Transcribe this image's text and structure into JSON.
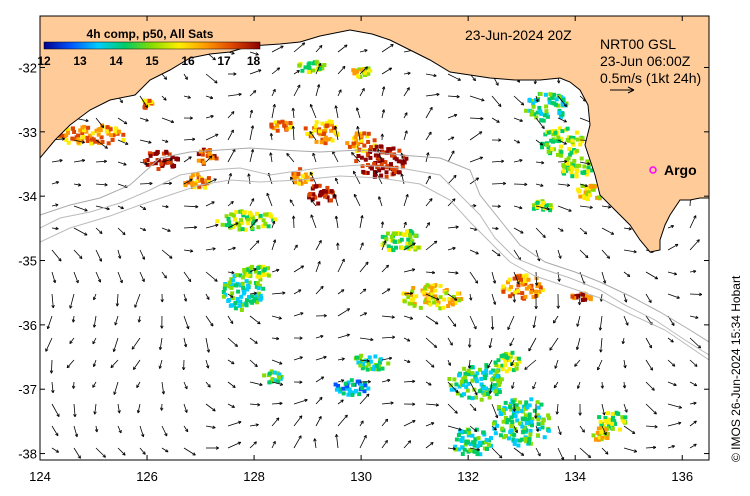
{
  "colorbar": {
    "title": "4h comp, p50, All Sats",
    "ticks": [
      "12",
      "13",
      "14",
      "15",
      "16",
      "17",
      "18"
    ],
    "stops": [
      "#00008b",
      "#0055ff",
      "#00ccff",
      "#00cc66",
      "#88dd00",
      "#ffee00",
      "#ff9900",
      "#dd4400",
      "#8b0000"
    ]
  },
  "header": {
    "datetime": "23-Jun-2024 20Z",
    "product": "NRT00 GSL",
    "analysis_time": "23-Jun 06:00Z",
    "scale_label": "0.5m/s (1kt 24h)"
  },
  "marker": {
    "label": "Argo",
    "color": "#ff00ff"
  },
  "credit": "© IMOS 26-Jun-2024 15:34 Hobart",
  "axes": {
    "x_ticks": [
      "124",
      "126",
      "128",
      "130",
      "132",
      "134",
      "136"
    ],
    "y_ticks": [
      "-32",
      "-33",
      "-34",
      "-35",
      "-36",
      "-37",
      "-38"
    ],
    "lon_range": [
      124,
      136.5
    ],
    "lat_range": [
      -38.1,
      -31.2
    ]
  },
  "colors": {
    "land": "#ffcc99",
    "ocean": "#ffffff",
    "contour": "#aaaaaa",
    "frame": "#000000"
  }
}
